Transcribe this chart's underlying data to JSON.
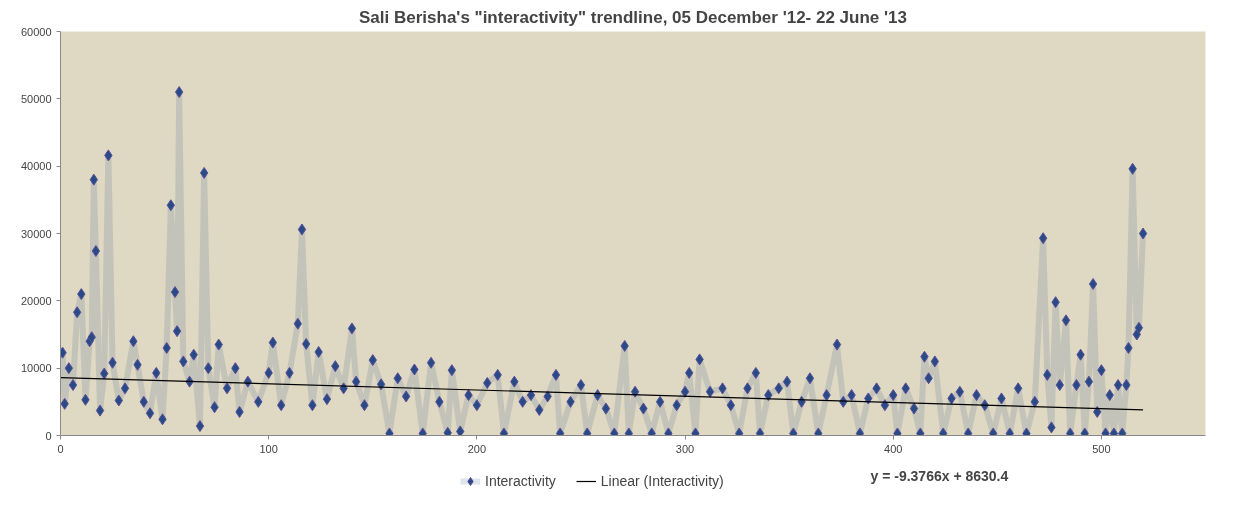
{
  "chart_data": {
    "type": "line",
    "title": "Sali Berisha's \"interactivity\" trendline, 05 December '12- 22 June '13",
    "xlim": [
      0,
      550
    ],
    "xticks": [
      0,
      100,
      200,
      300,
      400,
      500
    ],
    "ylim": [
      0,
      60000
    ],
    "yticks": [
      0,
      10000,
      20000,
      30000,
      40000,
      50000,
      60000
    ],
    "grid": false,
    "legend": "bottom",
    "marker": "diamond",
    "line_style": "solid",
    "annotations": [
      "y = -9.3766x + 8630.4"
    ],
    "series": [
      {
        "name": "Interactivity",
        "color": "#284b86",
        "x": [
          1,
          2,
          4,
          6,
          8,
          10,
          12,
          14,
          15,
          16,
          17,
          19,
          21,
          23,
          25,
          28,
          31,
          35,
          37,
          40,
          43,
          46,
          49,
          51,
          53,
          55,
          56,
          57,
          59,
          62,
          64,
          67,
          69,
          71,
          74,
          76,
          80,
          84,
          86,
          90,
          95,
          100,
          102,
          106,
          110,
          114,
          116,
          118,
          121,
          124,
          128,
          132,
          136,
          140,
          142,
          146,
          150,
          154,
          158,
          162,
          166,
          170,
          174,
          178,
          182,
          186,
          188,
          192,
          196,
          200,
          205,
          210,
          213,
          218,
          222,
          226,
          230,
          234,
          238,
          240,
          245,
          250,
          253,
          258,
          262,
          266,
          271,
          273,
          276,
          280,
          284,
          288,
          292,
          296,
          300,
          302,
          305,
          307,
          312,
          318,
          322,
          326,
          330,
          334,
          336,
          340,
          345,
          349,
          352,
          356,
          360,
          364,
          368,
          373,
          376,
          380,
          384,
          388,
          392,
          396,
          400,
          402,
          406,
          410,
          413,
          415,
          417,
          420,
          424,
          428,
          432,
          436,
          440,
          444,
          448,
          452,
          456,
          460,
          464,
          468,
          472,
          474,
          476,
          478,
          480,
          483,
          485,
          488,
          490,
          492,
          494,
          496,
          498,
          500,
          502,
          504,
          506,
          508,
          510,
          512,
          513,
          515,
          517,
          518,
          520
        ],
        "values": [
          12300,
          4700,
          10000,
          7500,
          18300,
          21000,
          5300,
          14000,
          14600,
          38000,
          27400,
          3700,
          9200,
          41600,
          10800,
          5200,
          7000,
          14000,
          10500,
          5000,
          3300,
          9300,
          2400,
          13000,
          34200,
          21300,
          15500,
          51000,
          11000,
          8000,
          12000,
          1400,
          39000,
          10000,
          4200,
          13500,
          7000,
          10000,
          3500,
          8000,
          5000,
          9300,
          13800,
          4500,
          9300,
          16600,
          30600,
          13600,
          4500,
          12400,
          5400,
          10300,
          7000,
          15900,
          8000,
          4500,
          11200,
          7600,
          300,
          8500,
          5800,
          9800,
          300,
          10800,
          5000,
          400,
          9700,
          600,
          6000,
          4500,
          7800,
          9000,
          300,
          8000,
          5000,
          6000,
          3800,
          5800,
          9000,
          300,
          5000,
          7500,
          300,
          6000,
          4000,
          300,
          13300,
          300,
          6500,
          4000,
          300,
          5000,
          300,
          4500,
          6500,
          9300,
          300,
          11300,
          6500,
          7000,
          4500,
          300,
          7000,
          9300,
          300,
          6000,
          7000,
          8000,
          300,
          5000,
          8500,
          300,
          6000,
          13500,
          5000,
          6000,
          300,
          5500,
          7000,
          4500,
          6000,
          300,
          7000,
          4000,
          300,
          11700,
          8500,
          11000,
          300,
          5500,
          6500,
          300,
          6000,
          4500,
          300,
          5500,
          300,
          7000,
          300,
          5000,
          29300,
          9000,
          1200,
          19800,
          7500,
          17100,
          300,
          7500,
          12000,
          300,
          8000,
          22500,
          3500,
          9700,
          300,
          6000,
          300,
          7500,
          300,
          7500,
          13000,
          39600,
          15000,
          16000,
          30000
        ]
      },
      {
        "name": "Linear (Interactivity)",
        "color": "#000000",
        "marker": "none",
        "x": [
          0,
          520
        ],
        "values": [
          8600,
          3800
        ]
      }
    ]
  }
}
